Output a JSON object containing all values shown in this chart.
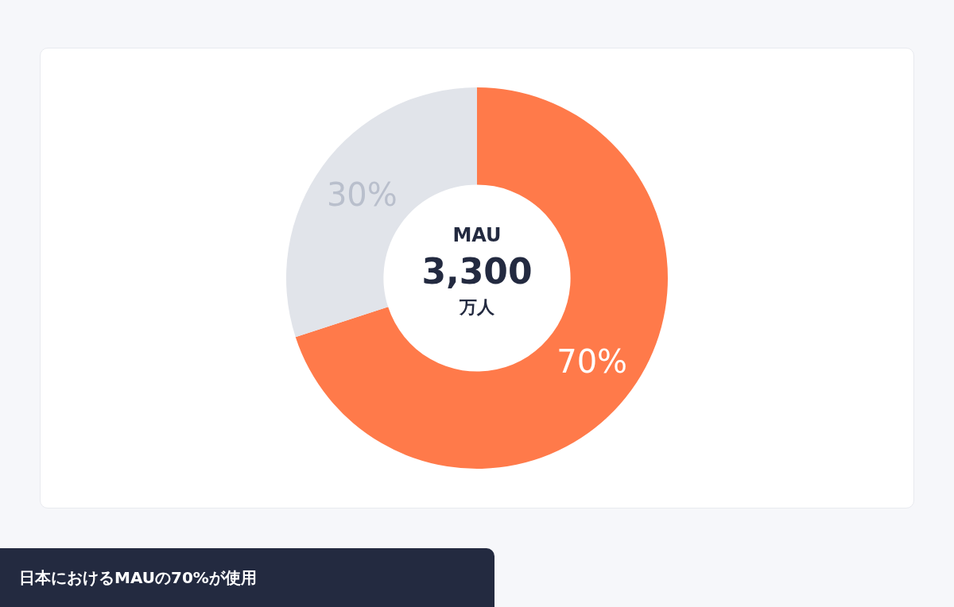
{
  "chart_data": {
    "type": "donut",
    "categories": [
      null,
      null
    ],
    "values": [
      70,
      30
    ],
    "colors": [
      "#ff7a4a",
      "#e1e4ea"
    ],
    "value_labels": [
      "70%",
      "30%"
    ],
    "legend": false,
    "annotations": [
      "MAU",
      "3,300",
      "万人",
      "日本におけるMAUの70%が使用"
    ]
  }
}
